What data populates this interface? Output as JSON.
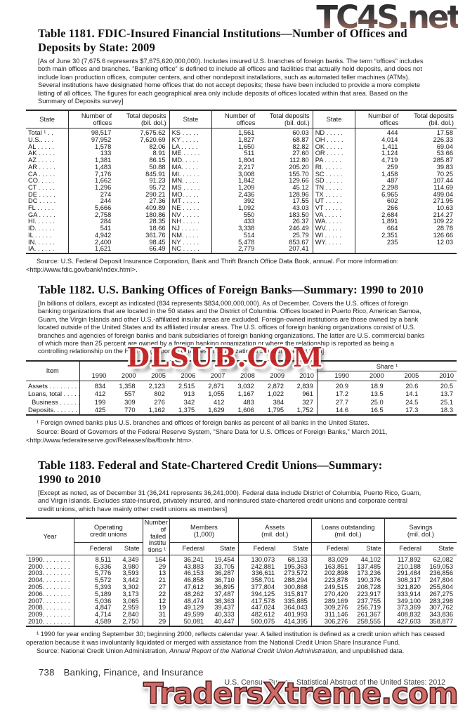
{
  "watermarks": {
    "top": "TC4S.net",
    "middle": "DLSUB.COM",
    "bottom": "TradersXtreme.com"
  },
  "table1181": {
    "title": "Table 1181. FDIC-Insured Financial Institutions—Number of Offices and\nDeposits by State: 2009",
    "note": "[As of June 30 (7,675.6 represents $7,675,620,000,000). Includes insured U.S. branches of foreign banks. The term “offices” includes both main offices and branches. “Banking office” is defined to include all offices and facilities that actually hold deposits, and does not include loan production offices, computer centers, and other nondeposit installations, such as automated teller machines (ATMs). Several institutions have designated home offices that do not accept deposits; these have been included to provide a more complete listing of all offices. The figures for each geographical area only include deposits of offices located within that area. Based on the Summary of Deposits survey]",
    "headers": {
      "state": "State",
      "offices": "Number of\noffices",
      "deposits": "Total deposits\n(bil. dol.)"
    },
    "rows": [
      [
        "Total ¹ . .",
        "98,517",
        "7,675.62",
        "KS . . . . .",
        "1,561",
        "60.03",
        "ND . . . . .",
        "444",
        "17.58"
      ],
      [
        "U.S.. . . .",
        "97,952",
        "7,620.69",
        "KY . . . . .",
        "1,827",
        "68.87",
        "OH . . . . .",
        "4,014",
        "226.33"
      ],
      [
        "AL . . . . .",
        "1,578",
        "82.06",
        "LA . . . . .",
        "1,650",
        "82.82",
        "OK . . . . .",
        "1,411",
        "69.04"
      ],
      [
        "AK . . . . .",
        "133",
        "8.91",
        "ME . . . . .",
        "511",
        "27.60",
        "OR . . . . .",
        "1,124",
        "53.66"
      ],
      [
        "AZ . . . . .",
        "1,381",
        "86.15",
        "MD. . . . .",
        "1,804",
        "112.80",
        "PA . . . . .",
        "4,719",
        "285.87"
      ],
      [
        "AR . . . . .",
        "1,483",
        "50.88",
        "MA. . . . .",
        "2,217",
        "205.20",
        "RI. . . . . .",
        "259",
        "39.83"
      ],
      [
        "CA . . . . .",
        "7,176",
        "845.91",
        "MI. . . . . .",
        "3,008",
        "155.70",
        "SC . . . . .",
        "1,458",
        "70.25"
      ],
      [
        "CO. . . . .",
        "1,662",
        "91.23",
        "MN. . . . .",
        "1,842",
        "129.66",
        "SD . . . . .",
        "487",
        "107.44"
      ],
      [
        "CT . . . . .",
        "1,296",
        "95.72",
        "MS . . . . .",
        "1,209",
        "45.12",
        "TN . . . . .",
        "2,298",
        "114.69"
      ],
      [
        "DE . . . . .",
        "274",
        "290.21",
        "MO. . . . .",
        "2,436",
        "128.96",
        "TX . . . . .",
        "6,965",
        "499.04"
      ],
      [
        "DC . . . . .",
        "244",
        "27.36",
        "MT . . . . .",
        "392",
        "17.55",
        "UT . . . . .",
        "602",
        "271.95"
      ],
      [
        "FL . . . . .",
        "5,666",
        "409.89",
        "NE . . . . .",
        "1,092",
        "43.03",
        "VT . . . . .",
        "266",
        "10.63"
      ],
      [
        "GA . . . . .",
        "2,758",
        "180.86",
        "NV . . . . .",
        "550",
        "183.50",
        "VA . . . . .",
        "2,684",
        "214.27"
      ],
      [
        "HI. . . . . .",
        "284",
        "28.35",
        "NH . . . . .",
        "433",
        "26.37",
        "WA. . . . .",
        "1,891",
        "109.22"
      ],
      [
        "ID. . . . . .",
        "541",
        "18.66",
        "NJ . . . . .",
        "3,338",
        "246.49",
        "WV. . . . .",
        "664",
        "28.78"
      ],
      [
        "IL . . . . .",
        "4,942",
        "361.76",
        "NM. . . . .",
        "514",
        "25.79",
        "WI . . . . .",
        "2,351",
        "126.66"
      ],
      [
        "IN. . . . . .",
        "2,400",
        "98.45",
        "NY . . . . .",
        "5,478",
        "853.67",
        "WY. . . . .",
        "235",
        "12.03"
      ],
      [
        "IA. . . . . .",
        "1,621",
        "66.49",
        "NC . . . . .",
        "2,779",
        "207.41",
        "",
        "",
        ""
      ]
    ],
    "source": "Source: U.S. Federal Deposit Insurance Corporation, Bank and Thrift Branch Office Data Book, annual. For more information: <http://www.fdic.gov/bank/index.html>."
  },
  "table1182": {
    "title": "Table 1182. U.S. Banking Offices of Foreign Banks—Summary: 1990 to 2010",
    "note": "[In billions of dollars, except as indicated (834 represents $834,000,000,000). As of December. Covers the U.S. offices of foreign banking organizations that are located in the 50 states and the District of Columbia. Offices located in Puerto Rico, American Samoa, Guam, the Virgin Islands and other U.S.-affiliated insular areas are excluded. Foreign-owned institutions are those owned by a bank located outside of the United States and its affiliated insular areas.  The U.S. offices of foreign banking organizations consist of U.S. branches and agencies of foreign banks and bank subsidiaries of foreign banking organizations. The latter are U.S. commercial banks of which more than 25 percent are owned by a foreign banking organization or where the relationship is reported as being a controlling relationship on the FR Y-10 (Report of Changes in Organizational Structure) report form]",
    "headers": {
      "item": "Item",
      "share": "Share ¹",
      "years": [
        "1990",
        "2000",
        "2005",
        "2006",
        "2007",
        "2008",
        "2009",
        "2010"
      ],
      "share_years": [
        "1990",
        "2000",
        "2005",
        "2010"
      ]
    },
    "rows": [
      [
        "Assets . . . . . . . . . . .",
        "834",
        "1,358",
        "2,123",
        "2,515",
        "2,871",
        "3,032",
        "2,872",
        "2,839",
        "20.9",
        "18.9",
        "20.6",
        "20.5"
      ],
      [
        "Loans, total . . . . . . .",
        "412",
        "557",
        "802",
        "913",
        "1,055",
        "1,167",
        "1,022",
        "961",
        "17.2",
        "13.5",
        "14.1",
        "13.7"
      ],
      [
        "  Business . . . . . . . .",
        "199",
        "309",
        "276",
        "342",
        "412",
        "483",
        "384",
        "327",
        "27.7",
        "25.0",
        "24.5",
        "25.1"
      ],
      [
        "Deposits. . . . . . . . . .",
        "425",
        "770",
        "1,162",
        "1,375",
        "1,629",
        "1,606",
        "1,795",
        "1,752",
        "14.6",
        "16.5",
        "17.3",
        "18.3"
      ]
    ],
    "footnote": "¹ Foreign owned banks plus U.S. branches and offices of foreign banks as percent of all banks in the United States.",
    "source": "Source: Board of Governors of the Federal Reserve System, “Share Data for U.S. Offices of Foreign Banks,” March 2011, <http://www.federalreserve.gov/Releases/iba/fboshr.htm>."
  },
  "table1183": {
    "title": "Table 1183. Federal and State-Chartered Credit Unions—Summary:\n1990 to 2010",
    "note": "[Except as noted, as of December 31 (36,241 represents 36,241,000). Federal data include District of Columbia, Puerto Rico, Guam, and Virgin Islands. Excludes state-insured, privately insured, and noninsured state-chartered credit unions and corporate central credit unions, which have mainly other credit unions as members]",
    "headers": {
      "year": "Year",
      "operating": "Operating\ncredit unions",
      "failed": "Number\nof failed\ninstitu\ntions ¹",
      "members": "Members\n(1,000)",
      "assets": "Assets\n(mil. dol.)",
      "loans": "Loans outstanding\n(mil. dol.)",
      "savings": "Savings\n(mil. dol.)",
      "federal": "Federal",
      "state": "State"
    },
    "rows": [
      [
        "1990. . . . . . . .",
        "8,511",
        "4,349",
        "164",
        "36,241",
        "19,454",
        "130,073",
        "68,133",
        "83,029",
        "44,102",
        "117,892",
        "62,082"
      ],
      [
        "2000. . . . . . . .",
        "6,336",
        "3,980",
        "29",
        "43,883",
        "33,705",
        "242,881",
        "195,363",
        "163,851",
        "137,485",
        "210,188",
        "169,053"
      ],
      [
        "2003. . . . . . . .",
        "5,776",
        "3,593",
        "13",
        "46,153",
        "36,287",
        "336,611",
        "273,572",
        "202,898",
        "173,236",
        "291,484",
        "236,856"
      ],
      [
        "2004. . . . . . . .",
        "5,572",
        "3,442",
        "21",
        "46,858",
        "36,710",
        "358,701",
        "288,294",
        "223,878",
        "190,376",
        "308,317",
        "247,804"
      ],
      [
        "2005. . . . . . . .",
        "5,393",
        "3,302",
        "27",
        "47,612",
        "36,895",
        "377,804",
        "300,868",
        "249,515",
        "208,728",
        "321,820",
        "255,804"
      ],
      [
        "2006. . . . . . . .",
        "5,189",
        "3,173",
        "22",
        "48,262",
        "37,487",
        "394,125",
        "315,817",
        "270,420",
        "223,917",
        "333,914",
        "267,275"
      ],
      [
        "2007. . . . . . . .",
        "5,036",
        "3,065",
        "12",
        "48,474",
        "38,363",
        "417,578",
        "335,885",
        "289,169",
        "237,755",
        "349,100",
        "283,298"
      ],
      [
        "2008. . . . . . . .",
        "4,847",
        "2,959",
        "19",
        "49,129",
        "39,437",
        "447,024",
        "364,043",
        "309,276",
        "256,719",
        "373,369",
        "307,762"
      ],
      [
        "2009. . . . . . . .",
        "4,714",
        "2,840",
        "31",
        "49,599",
        "40,333",
        "482,612",
        "401,993",
        "311,146",
        "261,367",
        "408,832",
        "343,836"
      ],
      [
        "2010. . . . . . . .",
        "4,589",
        "2,750",
        "29",
        "50,081",
        "40,447",
        "500,075",
        "414,395",
        "306,276",
        "258,555",
        "427,603",
        "358,877"
      ]
    ],
    "footnote": "¹ 1990 for year ending September 30; beginning 2000, reflects calendar year. A failed institution is defined as a credit union which has ceased operation because it was involuntarily liquidated or merged with assistance from the National Credit Union Share Insurance Fund.",
    "source_pre": "Source: National Credit Union Administration, ",
    "source_italic": "Annual Report of the National Credit Union Administration",
    "source_post": ", and unpublished data."
  },
  "footer": {
    "page_number": "738",
    "section": "Banking, Finance, and Insurance",
    "right": "U.S. Census Bureau, Statistical Abstract of the United States: 2012"
  }
}
